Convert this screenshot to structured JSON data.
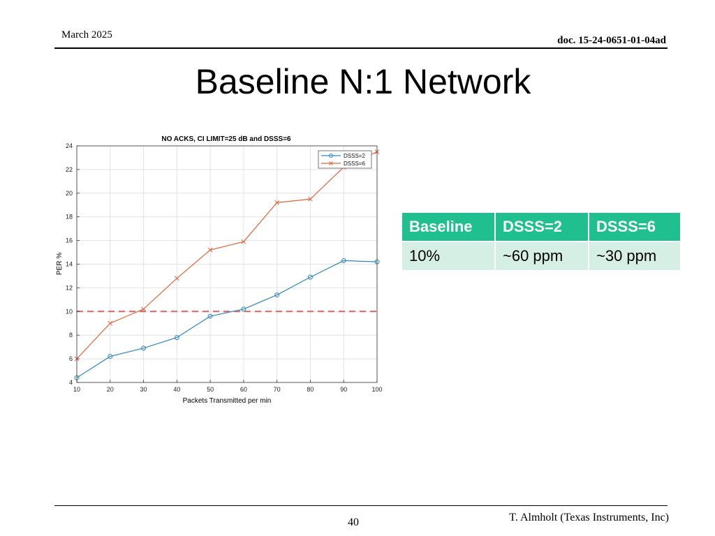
{
  "header": {
    "date": "March 2025",
    "doc": "doc. 15-24-0651-01-04ad"
  },
  "slide": {
    "title": "Baseline N:1 Network"
  },
  "table": {
    "headers": [
      "Baseline",
      "DSSS=2",
      "DSSS=6"
    ],
    "row": [
      "10%",
      "~60 ppm",
      "~30 ppm"
    ]
  },
  "footer": {
    "page": "40",
    "author": "T. Almholt (Texas Instruments, Inc)"
  },
  "chart_data": {
    "type": "line",
    "title": "NO ACKS, CI LIMIT=25 dB and DSSS=6",
    "xlabel": "Packets Transmitted per min",
    "ylabel": "PER %",
    "x": [
      10,
      20,
      30,
      40,
      50,
      60,
      70,
      80,
      90,
      100
    ],
    "xlim": [
      10,
      100
    ],
    "ylim": [
      4,
      24
    ],
    "xticks": [
      10,
      20,
      30,
      40,
      50,
      60,
      70,
      80,
      90,
      100
    ],
    "yticks": [
      4,
      6,
      8,
      10,
      12,
      14,
      16,
      18,
      20,
      22,
      24
    ],
    "grid": true,
    "legend": "top-right",
    "series": [
      {
        "name": "DSSS=2",
        "color": "#2f86c4",
        "marker": "circle",
        "values": [
          4.4,
          6.2,
          6.9,
          7.8,
          9.6,
          10.2,
          11.4,
          12.9,
          14.3,
          14.2
        ]
      },
      {
        "name": "DSSS=6",
        "color": "#e2643a",
        "marker": "x",
        "values": [
          6.0,
          9.0,
          10.2,
          12.8,
          15.2,
          15.9,
          19.2,
          19.5,
          22.2,
          23.5
        ]
      }
    ],
    "threshold": {
      "value": 10,
      "color": "#e06060"
    }
  }
}
